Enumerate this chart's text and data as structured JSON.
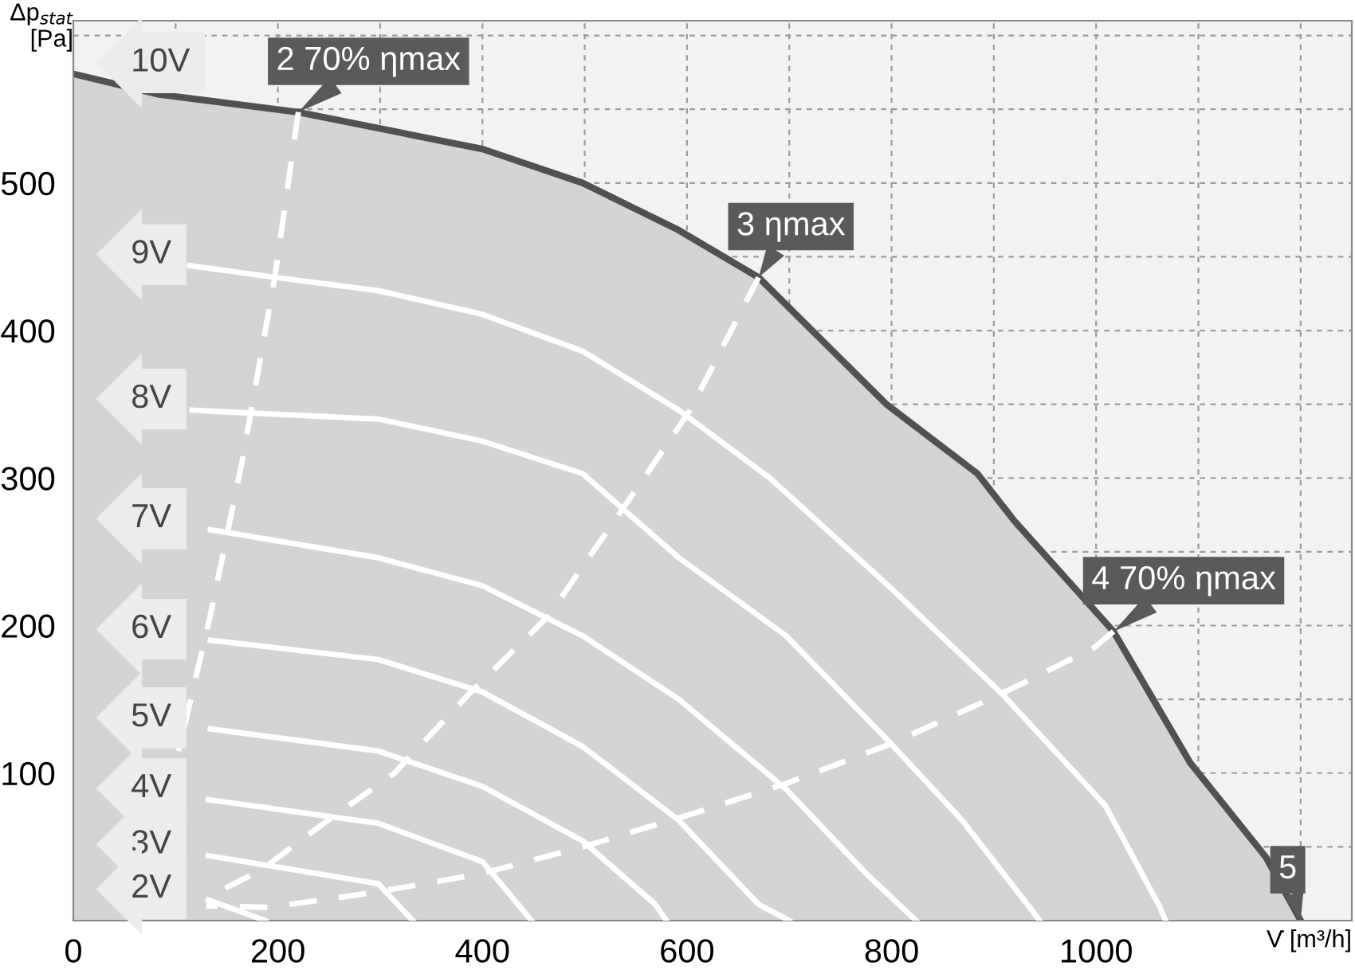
{
  "chart_data": {
    "type": "line",
    "xlabel": "V̇ [m³/h]",
    "ylabel": "Δp$_{stat}$\n[Pa]",
    "xlim": [
      0,
      1250
    ],
    "ylim": [
      0,
      610
    ],
    "xticks": [
      0,
      {
        "value": 100,
        "label": null
      },
      200,
      {
        "value": 300,
        "label": null
      },
      400,
      {
        "value": 500,
        "label": null
      },
      600,
      {
        "value": 700,
        "label": null
      },
      800,
      {
        "value": 900,
        "label": null
      },
      1000,
      {
        "value": 1100,
        "label": null
      },
      {
        "value": 1200,
        "label": null
      }
    ],
    "yticks": [
      {
        "value": 50,
        "label": null
      },
      100,
      {
        "value": 150,
        "label": null
      },
      200,
      {
        "value": 250,
        "label": null
      },
      300,
      {
        "value": 350,
        "label": null
      },
      400,
      {
        "value": 450,
        "label": null
      },
      500,
      {
        "value": 550,
        "label": null
      },
      {
        "value": 600,
        "label": null
      }
    ],
    "grid": true,
    "line_style": "solid",
    "series": [
      {
        "name": "10V",
        "type": "area",
        "color": "#d4d4d4",
        "x": [
          0,
          84,
          220,
          400,
          498,
          592,
          670,
          795,
          884,
          920,
          1017,
          1092,
          1166,
          1200
        ],
        "values": [
          574,
          560,
          548,
          523,
          500,
          468,
          436,
          350,
          303,
          271,
          196,
          107,
          43,
          0
        ]
      },
      {
        "name": "9V",
        "color": "#ffffff",
        "x": [
          114,
          198,
          298,
          400,
          498,
          592,
          681,
          800,
          909,
          1009,
          1061,
          1068
        ],
        "values": [
          444,
          436,
          427,
          411,
          386,
          346,
          300,
          225,
          153,
          78,
          11,
          0
        ]
      },
      {
        "name": "8V",
        "color": "#ffffff",
        "x": [
          116,
          298,
          400,
          498,
          592,
          697,
          798,
          869,
          945
        ],
        "values": [
          346,
          340,
          325,
          303,
          246,
          193,
          121,
          68,
          0
        ]
      },
      {
        "name": "7V",
        "color": "#ffffff",
        "x": [
          134,
          298,
          400,
          498,
          592,
          697,
          775,
          824
        ],
        "values": [
          265,
          246,
          227,
          193,
          150,
          89,
          32,
          0
        ]
      },
      {
        "name": "6V",
        "color": "#ffffff",
        "x": [
          134,
          298,
          400,
          498,
          592,
          670,
          700
        ],
        "values": [
          190,
          177,
          155,
          118,
          68,
          11,
          0
        ]
      },
      {
        "name": "5V",
        "color": "#ffffff",
        "x": [
          134,
          298,
          400,
          498,
          569,
          580
        ],
        "values": [
          130,
          115,
          91,
          54,
          11,
          0
        ]
      },
      {
        "name": "4V",
        "color": "#ffffff",
        "x": [
          132,
          298,
          400,
          448
        ],
        "values": [
          82,
          66,
          40,
          0
        ]
      },
      {
        "name": "3V",
        "color": "#ffffff",
        "x": [
          132,
          298,
          332
        ],
        "values": [
          44,
          25,
          0
        ]
      },
      {
        "name": "2V",
        "color": "#ffffff",
        "x": [
          132,
          188
        ],
        "values": [
          14,
          0
        ]
      },
      {
        "color": "#ffffff",
        "line_style": "dashed",
        "x": [
          220,
          197,
          165,
          134,
          103
        ],
        "values": [
          548,
          436,
          311,
          207,
          115
        ]
      },
      {
        "color": "#ffffff",
        "line_style": "dashed",
        "x": [
          670,
          603,
          558,
          464,
          386,
          314,
          241,
          183,
          134
        ],
        "values": [
          436,
          346,
          300,
          206,
          153,
          100,
          64,
          34,
          17
        ]
      },
      {
        "color": "#ffffff",
        "line_style": "dashed",
        "x": [
          1017,
          998,
          905,
          800,
          697,
          608,
          498,
          400,
          294,
          191,
          130
        ],
        "values": [
          196,
          185,
          153,
          120,
          93,
          73,
          50,
          32,
          19,
          9,
          10
        ]
      }
    ],
    "annotations": [
      {
        "text": "2 70% ηmax",
        "x": 220,
        "y": 548
      },
      {
        "text": "3 ηmax",
        "x": 670,
        "y": 436
      },
      {
        "text": "4 70% ηmax",
        "x": 1017,
        "y": 196
      },
      {
        "text": "5",
        "x": 1200,
        "y": 0
      }
    ]
  }
}
